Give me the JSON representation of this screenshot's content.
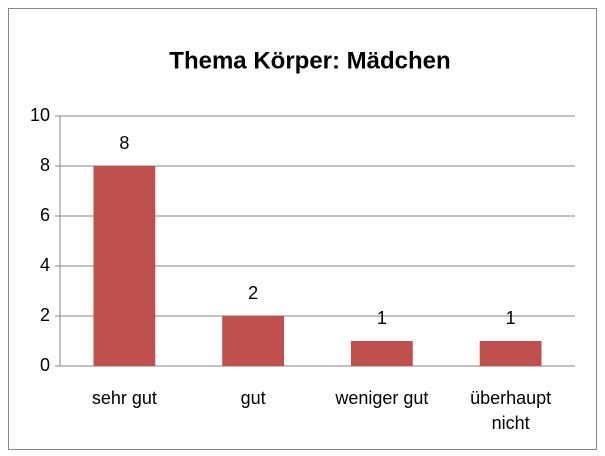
{
  "chart_data": {
    "type": "bar",
    "title": "Thema Körper: Mädchen",
    "categories": [
      "sehr gut",
      "gut",
      "weniger gut",
      "überhaupt nicht"
    ],
    "values": [
      8,
      2,
      1,
      1
    ],
    "color": "#c0504d",
    "ylim": [
      0,
      10
    ],
    "yticks": [
      0,
      2,
      4,
      6,
      8,
      10
    ],
    "grid": true
  }
}
